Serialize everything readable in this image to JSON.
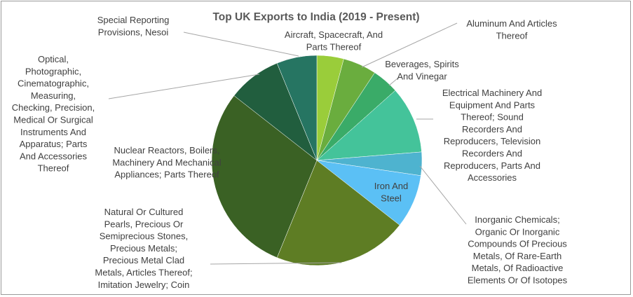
{
  "chart_data": {
    "type": "pie",
    "title": "Top UK Exports to India (2019 - Present)",
    "slices": [
      {
        "label": "Aircraft, Spacecraft, And Parts Thereof",
        "value": 4,
        "color": "#9acd3a"
      },
      {
        "label": "Aluminum And Articles Thereof",
        "value": 5,
        "color": "#6aad3e"
      },
      {
        "label": "Beverages, Spirits And Vinegar",
        "value": 4,
        "color": "#3aab68"
      },
      {
        "label": "Electrical Machinery And Equipment And Parts Thereof; Sound Recorders And Reproducers, Television Recorders And Reproducers, Parts And Accessories",
        "value": 10,
        "color": "#44c39a"
      },
      {
        "label": "Inorganic Chemicals; Organic Or Inorganic Compounds Of Precious Metals, Of Rare-Earth Metals, Of Radioactive Elements Or Of Isotopes",
        "value": 3.5,
        "color": "#4eb3cf"
      },
      {
        "label": "Iron And Steel",
        "value": 8,
        "color": "#5bc0f5"
      },
      {
        "label": "Natural Or Cultured Pearls, Precious Or Semiprecious Stones, Precious Metals; Precious Metal Clad Metals, Articles Thereof; Imitation Jewelry; Coin",
        "value": 20,
        "color": "#5e7d24"
      },
      {
        "label": "Nuclear Reactors, Boilers, Machinery And Mechanical Appliances; Parts Thereof",
        "value": 28.5,
        "color": "#3a6124"
      },
      {
        "label": "Optical, Photographic, Cinematographic, Measuring, Checking, Precision, Medical Or Surgical Instruments And Apparatus; Parts And Accessories Thereof",
        "value": 8,
        "color": "#215e3e"
      },
      {
        "label": "Special Reporting Provisions, Nesoi",
        "value": 6,
        "color": "#267562"
      }
    ]
  }
}
